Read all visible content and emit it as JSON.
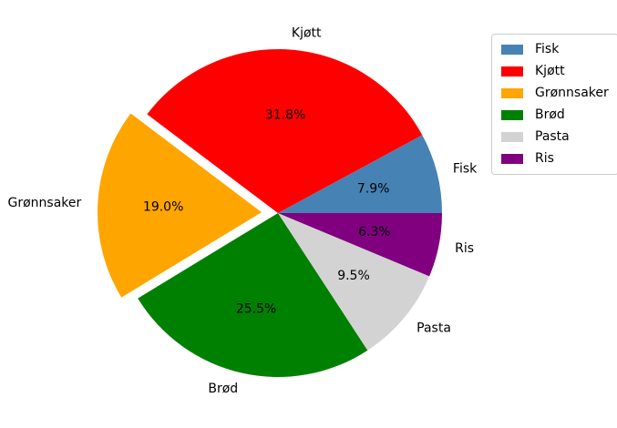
{
  "chart_data": {
    "type": "pie",
    "title": "",
    "categories": [
      "Fisk",
      "Kjøtt",
      "Grønnsaker",
      "Brød",
      "Pasta",
      "Ris"
    ],
    "values": [
      7.9,
      31.8,
      19.0,
      25.5,
      9.5,
      6.3
    ],
    "pct_labels": [
      "7.9%",
      "31.8%",
      "19.0%",
      "25.5%",
      "9.5%",
      "6.3%"
    ],
    "colors": [
      "#4682b4",
      "#ff0000",
      "#ffa500",
      "#008000",
      "#d3d3d3",
      "#800080"
    ],
    "explode": [
      0,
      0,
      0.1,
      0,
      0,
      0
    ],
    "start_angle": 0,
    "direction": "counterclockwise",
    "label_distance": 1.1,
    "pct_distance": 0.6,
    "background_color": "#ffffff",
    "text_color": "#000000",
    "legend": {
      "position": "upper right",
      "border_color": "#cccccc",
      "entries": [
        "Fisk",
        "Kjøtt",
        "Grønnsaker",
        "Brød",
        "Pasta",
        "Ris"
      ]
    }
  }
}
